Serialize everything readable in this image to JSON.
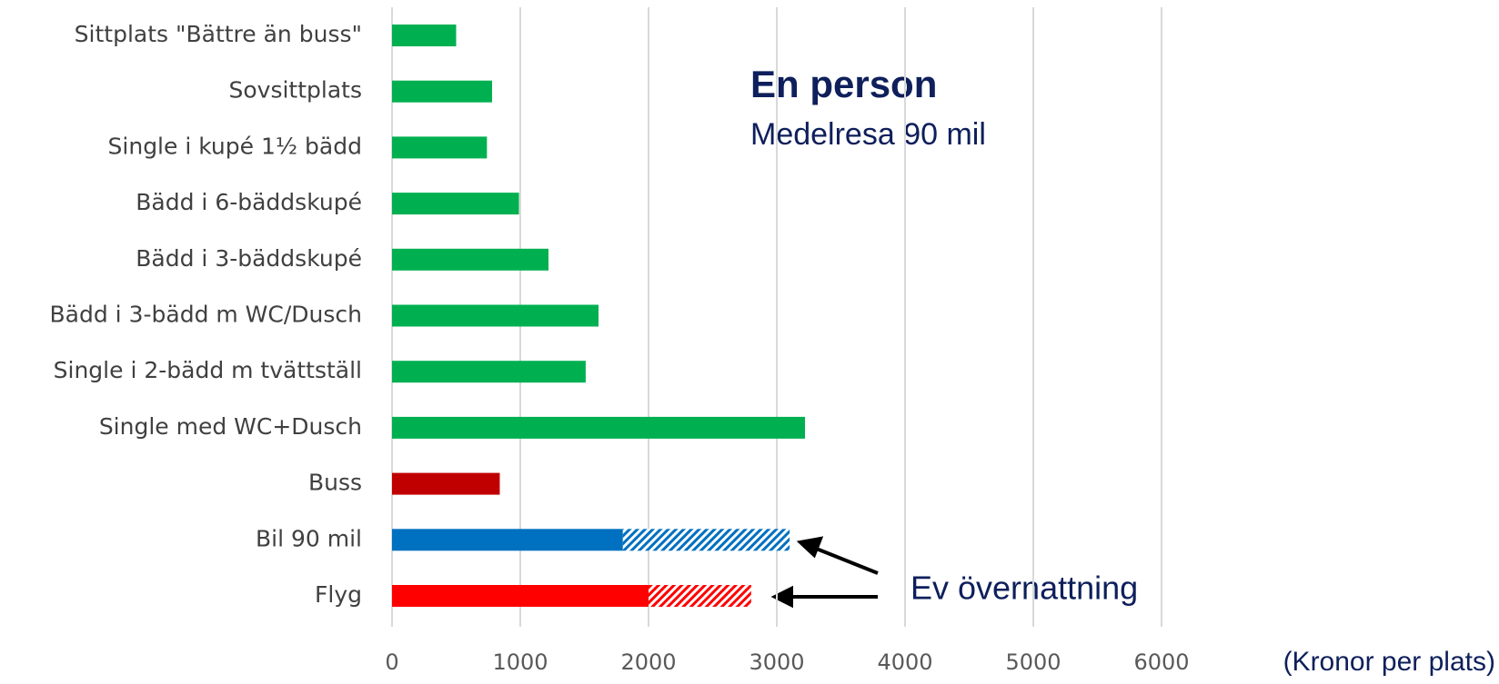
{
  "chart_data": {
    "type": "stacked-bar-horizontal",
    "title": "En person",
    "subtitle": "Medelresa 90 mil",
    "x_label": "(Kronor per plats)",
    "categories": [
      "Sittplats \"Bättre än buss\"",
      "Sovsittplats",
      "Single i kupé 1½ bädd",
      "Bädd i 6-bäddskupé",
      "Bädd i 3-bäddskupé",
      "Bädd i 3-bädd m WC/Dusch",
      "Single i 2-bädd m tvättställ",
      "Single med WC+Dusch",
      "Buss",
      "Bil 90 mil",
      "Flyg"
    ],
    "series": [
      {
        "values": [
          500,
          780,
          740,
          990,
          1220,
          1610,
          1510,
          3220,
          840,
          1800,
          2000
        ],
        "colors": [
          "#00b050",
          "#00b050",
          "#00b050",
          "#00b050",
          "#00b050",
          "#00b050",
          "#00b050",
          "#00b050",
          "#c00000",
          "#0070c0",
          "#ff0000"
        ]
      },
      {
        "name": "Ev övernattning",
        "pattern": "hatch",
        "values": [
          null,
          null,
          null,
          null,
          null,
          null,
          null,
          null,
          null,
          1300,
          800
        ],
        "colors": [
          null,
          null,
          null,
          null,
          null,
          null,
          null,
          null,
          null,
          "#0070c0",
          "#ff0000"
        ]
      }
    ],
    "xlim": [
      0,
      6200
    ],
    "xticks": [
      0,
      1000,
      2000,
      3000,
      4000,
      5000,
      6000
    ],
    "grid": true
  }
}
